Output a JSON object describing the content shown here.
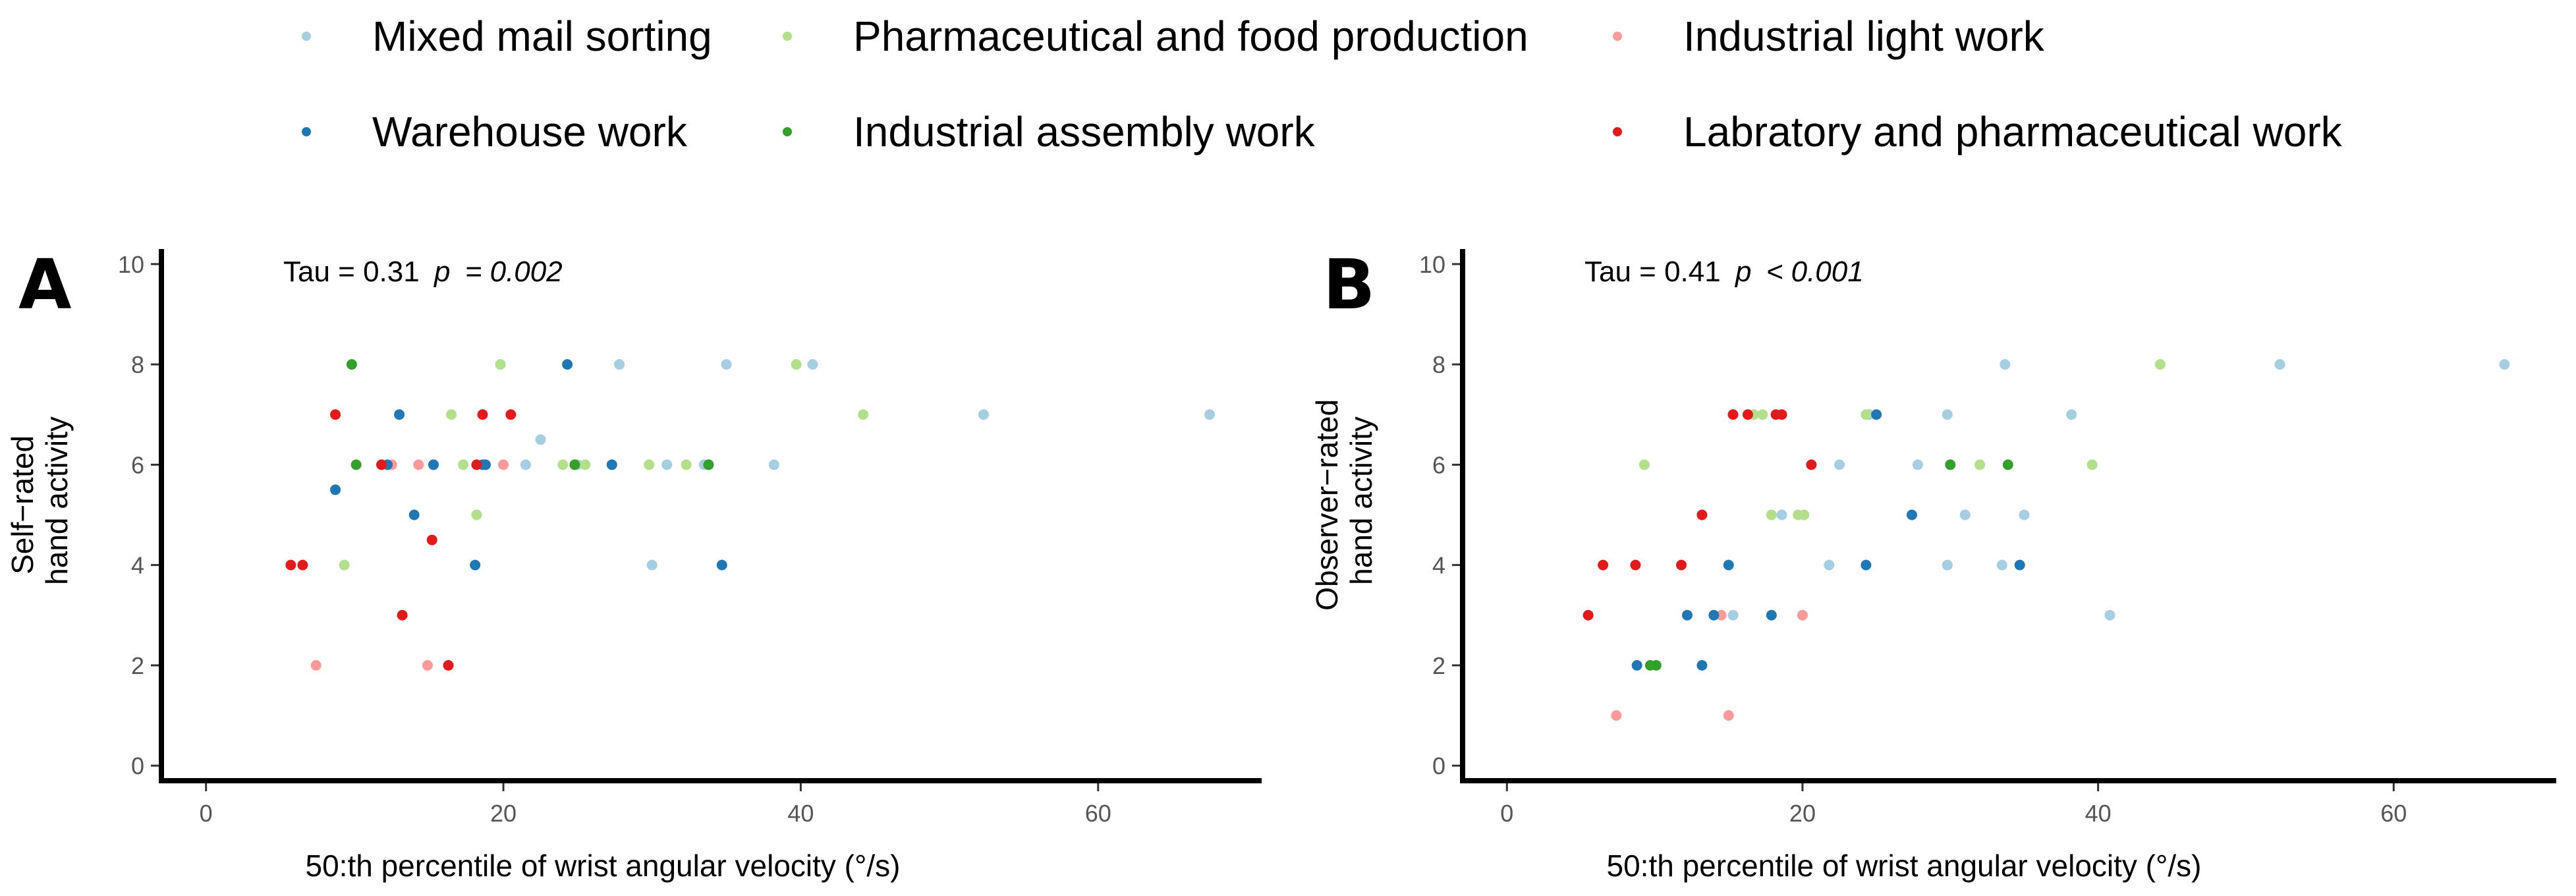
{
  "legend": [
    {
      "key": "mixed",
      "label": "Mixed mail sorting",
      "color": "#a6cee3"
    },
    {
      "key": "pharmfood",
      "label": "Pharmaceutical and food production",
      "color": "#b2df8a"
    },
    {
      "key": "indlight",
      "label": "Industrial light work",
      "color": "#fb9a99"
    },
    {
      "key": "warehouse",
      "label": "Warehouse work",
      "color": "#1f78b4"
    },
    {
      "key": "assembly",
      "label": "Industrial assembly work",
      "color": "#33a02c"
    },
    {
      "key": "lab",
      "label": "Labratory and pharmaceutical work",
      "color": "#e31a1c"
    }
  ],
  "chart_data": [
    {
      "type": "scatter",
      "panel_label": "A",
      "annotation": {
        "stat": "Tau = 0.31",
        "p_label": "p",
        "p_text": "= 0.002"
      },
      "xlabel": "50:th percentile of wrist angular velocity (°/s)",
      "ylabel_lines": [
        "Self−rated",
        "hand activity"
      ],
      "xlim": [
        -3,
        71
      ],
      "ylim": [
        -0.3,
        10.3
      ],
      "xticks": [
        0,
        20,
        40,
        60
      ],
      "yticks": [
        0,
        2,
        4,
        6,
        8,
        10
      ],
      "series": [
        {
          "key": "mixed",
          "x": [
            21.5,
            22.5,
            27.8,
            35.0,
            40.8,
            52.3,
            67.5,
            30.0,
            31.0,
            33.5,
            38.2,
            25.0
          ],
          "y": [
            6,
            6.5,
            8,
            8,
            8,
            7,
            7,
            4,
            6,
            6,
            6,
            6
          ]
        },
        {
          "key": "pharmfood",
          "x": [
            9.3,
            16.5,
            18.2,
            19.8,
            24.0,
            25.5,
            32.3,
            39.7,
            44.2,
            17.3,
            29.8
          ],
          "y": [
            4,
            7,
            5,
            8,
            6,
            6,
            6,
            8,
            7,
            6,
            6
          ]
        },
        {
          "key": "indlight",
          "x": [
            7.4,
            14.9,
            14.3,
            15.3,
            20.0,
            12.5
          ],
          "y": [
            2,
            2,
            6,
            6,
            6,
            6
          ]
        },
        {
          "key": "warehouse",
          "x": [
            8.7,
            13.0,
            14.0,
            18.1,
            18.8,
            24.3,
            27.3,
            34.7,
            12.2,
            15.3,
            18.6
          ],
          "y": [
            5.5,
            7,
            5,
            4,
            6,
            8,
            6,
            4,
            6,
            6,
            6
          ]
        },
        {
          "key": "assembly",
          "x": [
            9.8,
            10.1,
            24.8,
            33.8
          ],
          "y": [
            8,
            6,
            6,
            6
          ]
        },
        {
          "key": "lab",
          "x": [
            5.7,
            6.5,
            8.7,
            13.2,
            15.2,
            16.3,
            18.6,
            20.5,
            11.8,
            18.2
          ],
          "y": [
            4,
            4,
            7,
            3,
            4.5,
            2,
            7,
            7,
            6,
            6
          ]
        }
      ]
    },
    {
      "type": "scatter",
      "panel_label": "B",
      "annotation": {
        "stat": "Tau = 0.41",
        "p_label": "p",
        "p_text": "< 0.001"
      },
      "xlabel": "50:th percentile of wrist angular velocity (°/s)",
      "ylabel_lines": [
        "Observer−rated",
        "hand activity"
      ],
      "xlim": [
        -3,
        71
      ],
      "ylim": [
        -0.3,
        10.3
      ],
      "xticks": [
        0,
        20,
        40,
        60
      ],
      "yticks": [
        0,
        2,
        4,
        6,
        8,
        10
      ],
      "series": [
        {
          "key": "mixed",
          "x": [
            33.7,
            52.3,
            67.5,
            38.2,
            29.8,
            22.5,
            27.8,
            31.0,
            35.0,
            18.6,
            21.8,
            29.8,
            33.5,
            40.8,
            15.3,
            24.5
          ],
          "y": [
            8,
            8,
            8,
            7,
            7,
            6,
            6,
            5,
            5,
            5,
            4,
            4,
            4,
            3,
            3,
            7
          ]
        },
        {
          "key": "pharmfood",
          "x": [
            44.2,
            16.7,
            17.3,
            24.3,
            9.3,
            32.0,
            39.6,
            17.9,
            19.7,
            20.1
          ],
          "y": [
            8,
            7,
            7,
            7,
            6,
            6,
            6,
            5,
            5,
            5
          ]
        },
        {
          "key": "indlight",
          "x": [
            7.4,
            15.0,
            20.0,
            14.5
          ],
          "y": [
            1,
            1,
            3,
            3
          ]
        },
        {
          "key": "warehouse",
          "x": [
            25.0,
            27.4,
            15.0,
            24.3,
            34.7,
            12.2,
            14.0,
            17.9,
            8.8,
            13.2
          ],
          "y": [
            7,
            5,
            4,
            4,
            4,
            3,
            3,
            3,
            2,
            2
          ]
        },
        {
          "key": "assembly",
          "x": [
            30.0,
            33.9,
            9.7,
            10.1
          ],
          "y": [
            6,
            6,
            2,
            2
          ]
        },
        {
          "key": "lab",
          "x": [
            15.3,
            16.3,
            18.2,
            18.6,
            20.6,
            13.2,
            6.5,
            8.7,
            11.8,
            5.5
          ],
          "y": [
            7,
            7,
            7,
            7,
            6,
            5,
            4,
            4,
            4,
            3
          ]
        }
      ]
    }
  ]
}
